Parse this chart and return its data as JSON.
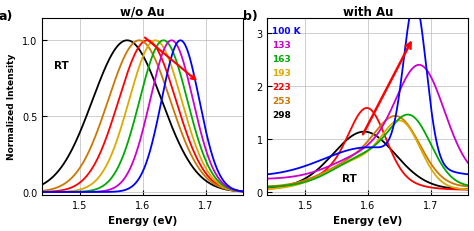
{
  "title_a": "w/o Au",
  "title_b": "with Au",
  "label_a": "a)",
  "label_b": "b)",
  "xlabel": "Energy (eV)",
  "ylabel": "Normalized Intensity",
  "xmin": 1.44,
  "xmax": 1.76,
  "temps": [
    100,
    133,
    163,
    193,
    223,
    253,
    298
  ],
  "colors": [
    "blue",
    "#cc00cc",
    "#00aa00",
    "#ddaa00",
    "red",
    "#cc7700",
    "black"
  ],
  "legend_labels": [
    "100 K",
    "133",
    "163",
    "193",
    "223",
    "253",
    "298"
  ],
  "background": "white",
  "grid_color": "#bbbbbb"
}
